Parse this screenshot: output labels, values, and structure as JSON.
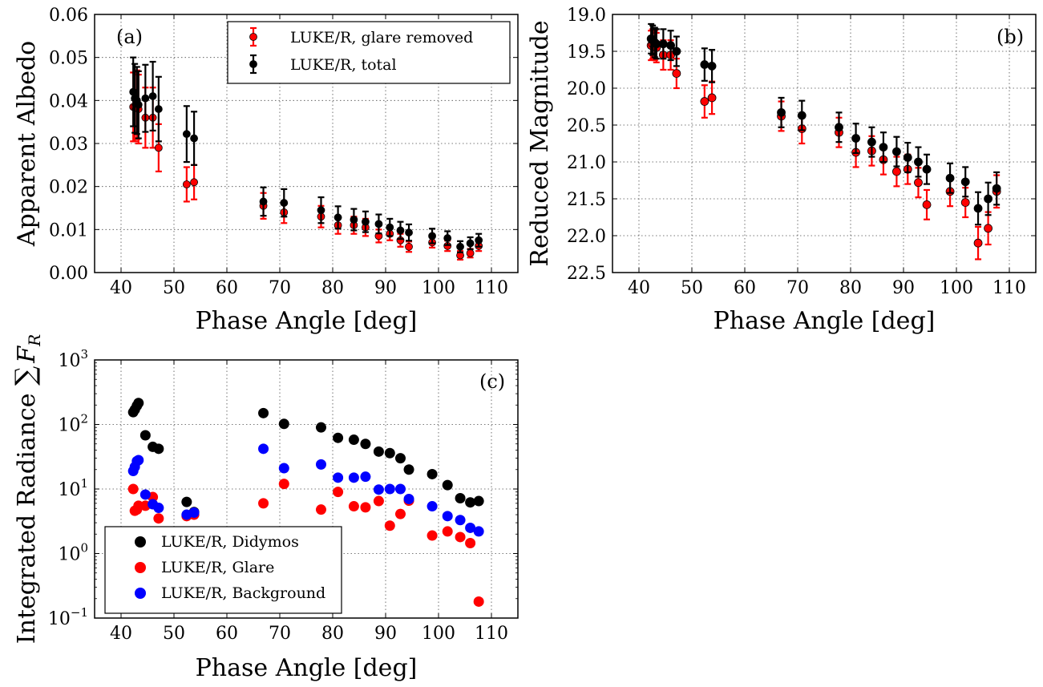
{
  "colors": {
    "red": "#ff0000",
    "black": "#000000",
    "blue": "#0000ff"
  },
  "chart_data": [
    {
      "panel": "(a)",
      "type": "scatter",
      "xlabel": "Phase Angle [deg]",
      "ylabel": "Apparent Albedo",
      "xlim": [
        35,
        115
      ],
      "ylim": [
        0,
        0.06
      ],
      "xticks": [
        40,
        50,
        60,
        70,
        80,
        90,
        100,
        110
      ],
      "yticks": [
        "0.00",
        "0.01",
        "0.02",
        "0.03",
        "0.04",
        "0.05",
        "0.06"
      ],
      "grid": true,
      "legend_position": "top-right",
      "series": [
        {
          "name": "LUKE/R, glare removed",
          "color": "#ff0000",
          "x": [
            42.3,
            42.6,
            43.0,
            43.3,
            44.6,
            46.0,
            47.1,
            52.4,
            53.8,
            66.9,
            70.8,
            77.8,
            81.0,
            84.0,
            86.2,
            88.7,
            90.8,
            92.8,
            94.4,
            98.8,
            101.7,
            104.1,
            106.0,
            107.6
          ],
          "y": [
            0.0385,
            0.0385,
            0.039,
            0.038,
            0.036,
            0.036,
            0.029,
            0.0205,
            0.021,
            0.0155,
            0.014,
            0.013,
            0.011,
            0.011,
            0.0105,
            0.0085,
            0.009,
            0.0075,
            0.006,
            0.007,
            0.0062,
            0.004,
            0.0045,
            0.0062
          ],
          "err": [
            0.008,
            0.008,
            0.008,
            0.008,
            0.007,
            0.007,
            0.0055,
            0.004,
            0.004,
            0.003,
            0.0025,
            0.0025,
            0.002,
            0.002,
            0.002,
            0.0015,
            0.0015,
            0.0015,
            0.0012,
            0.0012,
            0.0012,
            0.001,
            0.001,
            0.0012
          ]
        },
        {
          "name": "LUKE/R, total",
          "color": "#000000",
          "x": [
            42.3,
            42.6,
            43.0,
            43.3,
            44.6,
            46.0,
            47.1,
            52.4,
            53.8,
            66.9,
            70.8,
            77.8,
            81.0,
            84.0,
            86.2,
            88.7,
            90.8,
            92.8,
            94.4,
            98.8,
            101.7,
            104.1,
            106.0,
            107.6
          ],
          "y": [
            0.042,
            0.0405,
            0.04,
            0.039,
            0.0405,
            0.041,
            0.038,
            0.0322,
            0.0312,
            0.0165,
            0.0162,
            0.0145,
            0.0128,
            0.0123,
            0.0118,
            0.0113,
            0.0105,
            0.0098,
            0.0093,
            0.0085,
            0.008,
            0.006,
            0.0068,
            0.0075
          ],
          "err": [
            0.008,
            0.008,
            0.0078,
            0.0078,
            0.0078,
            0.008,
            0.0075,
            0.0065,
            0.0062,
            0.0033,
            0.0032,
            0.003,
            0.0026,
            0.0025,
            0.0024,
            0.0022,
            0.002,
            0.002,
            0.0019,
            0.0017,
            0.0016,
            0.0013,
            0.0014,
            0.0015
          ]
        }
      ]
    },
    {
      "panel": "(b)",
      "type": "scatter",
      "xlabel": "Phase Angle [deg]",
      "ylabel": "Reduced Magnitude",
      "xlim": [
        35,
        115
      ],
      "ylim": [
        22.5,
        19.0
      ],
      "inverted_y": true,
      "xticks": [
        40,
        50,
        60,
        70,
        80,
        90,
        100,
        110
      ],
      "yticks": [
        "19.0",
        "19.5",
        "20.0",
        "20.5",
        "21.0",
        "21.5",
        "22.0",
        "22.5"
      ],
      "grid": true,
      "series": [
        {
          "name": "glare removed",
          "color": "#ff0000",
          "x": [
            42.3,
            42.6,
            43.0,
            43.3,
            44.6,
            46.0,
            47.1,
            52.4,
            53.8,
            66.9,
            70.8,
            77.8,
            81.0,
            84.0,
            86.2,
            88.7,
            90.8,
            92.8,
            94.4,
            98.8,
            101.7,
            104.1,
            106.0,
            107.6
          ],
          "y": [
            19.42,
            19.4,
            19.42,
            19.45,
            19.55,
            19.55,
            19.8,
            20.18,
            20.13,
            20.38,
            20.55,
            20.6,
            20.87,
            20.85,
            20.97,
            21.13,
            21.1,
            21.28,
            21.58,
            21.4,
            21.55,
            22.1,
            21.9,
            21.4
          ],
          "err": [
            0.2,
            0.2,
            0.2,
            0.2,
            0.2,
            0.2,
            0.2,
            0.22,
            0.22,
            0.2,
            0.2,
            0.2,
            0.2,
            0.2,
            0.2,
            0.2,
            0.2,
            0.2,
            0.2,
            0.2,
            0.2,
            0.22,
            0.22,
            0.22
          ]
        },
        {
          "name": "total",
          "color": "#000000",
          "x": [
            42.3,
            42.6,
            43.0,
            43.3,
            44.6,
            46.0,
            47.1,
            52.4,
            53.8,
            66.9,
            70.8,
            77.8,
            81.0,
            84.0,
            86.2,
            88.7,
            90.8,
            92.8,
            94.4,
            98.8,
            101.7,
            104.1,
            106.0,
            107.6
          ],
          "y": [
            19.33,
            19.35,
            19.38,
            19.4,
            19.4,
            19.42,
            19.5,
            19.68,
            19.7,
            20.33,
            20.37,
            20.53,
            20.68,
            20.73,
            20.8,
            20.86,
            20.94,
            21.0,
            21.1,
            21.22,
            21.27,
            21.63,
            21.5,
            21.36
          ],
          "err": [
            0.2,
            0.2,
            0.2,
            0.2,
            0.2,
            0.2,
            0.2,
            0.22,
            0.22,
            0.2,
            0.2,
            0.2,
            0.2,
            0.2,
            0.2,
            0.2,
            0.2,
            0.2,
            0.2,
            0.2,
            0.2,
            0.22,
            0.22,
            0.22
          ]
        }
      ]
    },
    {
      "panel": "(c)",
      "type": "scatter",
      "xlabel": "Phase Angle [deg]",
      "ylabel_text": "Integrated Radiance ",
      "ylabel_sum": "∑",
      "ylabel_var": "F",
      "ylabel_sub": "R",
      "yscale": "log",
      "xlim": [
        35,
        115
      ],
      "ylim": [
        0.1,
        1000
      ],
      "xticks": [
        40,
        50,
        60,
        70,
        80,
        90,
        100,
        110
      ],
      "yticks": [
        {
          "base": "10",
          "exp": "−1",
          "value": 0.1
        },
        {
          "base": "10",
          "exp": "0",
          "value": 1
        },
        {
          "base": "10",
          "exp": "1",
          "value": 10
        },
        {
          "base": "10",
          "exp": "2",
          "value": 100
        },
        {
          "base": "10",
          "exp": "3",
          "value": 1000
        }
      ],
      "grid": true,
      "legend_position": "bottom-left",
      "series": [
        {
          "name": "LUKE/R, Didymos",
          "color": "#000000",
          "x": [
            42.3,
            42.6,
            43.0,
            43.3,
            44.6,
            46.0,
            47.1,
            52.4,
            53.8,
            66.9,
            70.8,
            77.8,
            81.0,
            84.0,
            86.2,
            88.7,
            90.8,
            92.8,
            94.4,
            98.8,
            101.7,
            104.1,
            106.0,
            107.6
          ],
          "y": [
            155,
            170,
            195,
            215,
            68,
            45,
            42,
            6.3,
            4.4,
            150,
            102,
            90,
            62,
            58,
            50,
            38,
            36,
            30,
            20,
            17,
            11.5,
            7.2,
            6.2,
            6.5
          ]
        },
        {
          "name": "LUKE/R, Glare",
          "color": "#ff0000",
          "x": [
            42.3,
            42.6,
            43.0,
            43.3,
            44.6,
            46.0,
            47.1,
            52.4,
            53.8,
            66.9,
            70.8,
            77.8,
            81.0,
            84.0,
            86.2,
            88.7,
            90.8,
            92.8,
            94.4,
            98.8,
            101.7,
            104.1,
            106.0,
            107.6
          ],
          "y": [
            10,
            4.6,
            4.8,
            5.5,
            5.5,
            7.5,
            3.5,
            3.8,
            4.0,
            6.0,
            12,
            4.8,
            9.0,
            5.4,
            5.2,
            6.5,
            2.7,
            4.1,
            6.6,
            1.9,
            2.2,
            1.8,
            1.45,
            0.18
          ]
        },
        {
          "name": "LUKE/R, Background",
          "color": "#0000ff",
          "x": [
            42.3,
            42.6,
            43.0,
            43.3,
            44.6,
            46.0,
            47.1,
            52.4,
            53.8,
            66.9,
            70.8,
            77.8,
            81.0,
            84.0,
            86.2,
            88.7,
            90.8,
            92.8,
            94.4,
            98.8,
            101.7,
            104.1,
            106.0,
            107.6
          ],
          "y": [
            19,
            22,
            27,
            28,
            8.2,
            5.8,
            5.1,
            4.0,
            4.3,
            42,
            21,
            24,
            15,
            15,
            15.5,
            9.8,
            10,
            10,
            7.0,
            5.4,
            3.8,
            3.3,
            2.5,
            2.2
          ]
        }
      ]
    }
  ]
}
